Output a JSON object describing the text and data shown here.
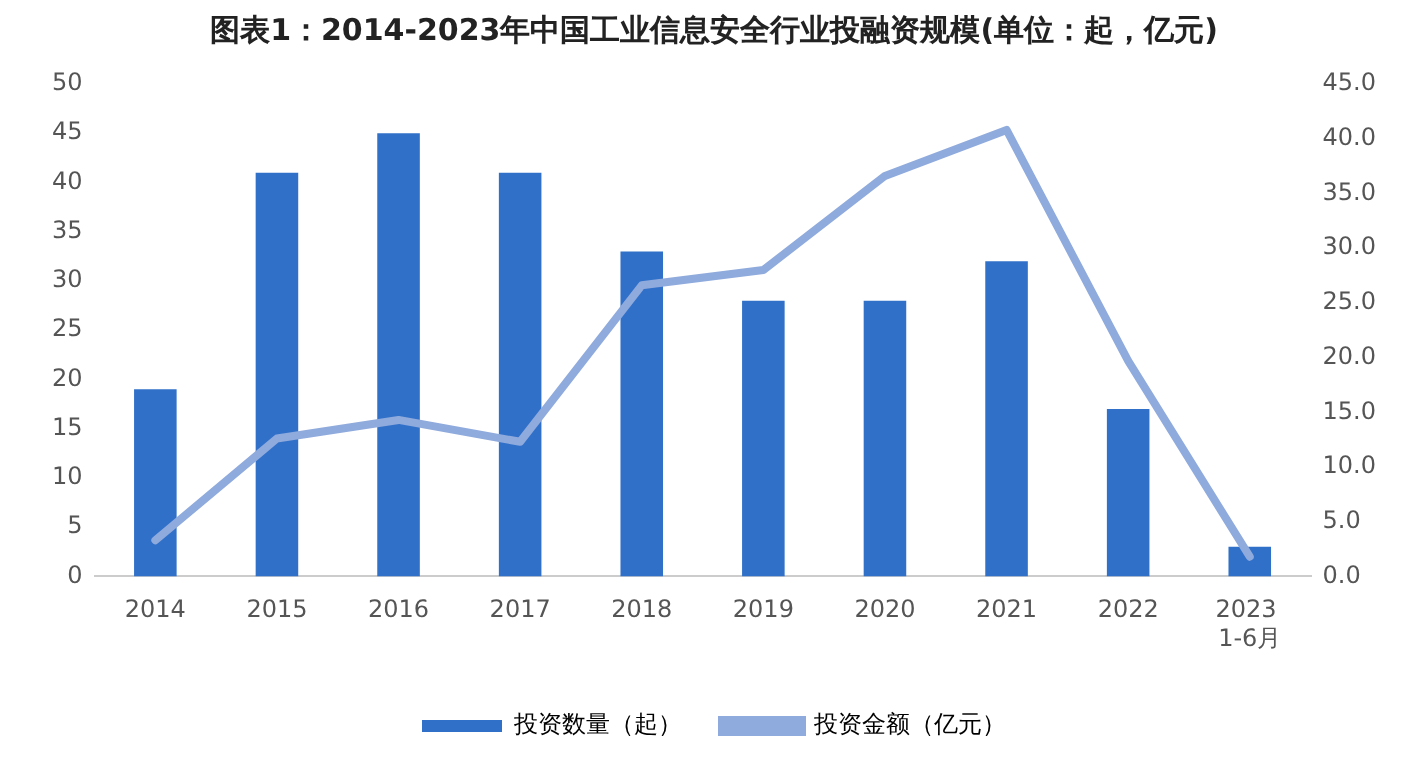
{
  "chart_data": {
    "type": "bar",
    "title": "图表1：2014-2023年中国工业信息安全行业投融资规模(单位：起，亿元)",
    "categories": [
      "2014",
      "2015",
      "2016",
      "2017",
      "2018",
      "2019",
      "2020",
      "2021",
      "2022",
      "2023 1-6月"
    ],
    "series": [
      {
        "name": "投资数量（起）",
        "color": "#3070c8",
        "values": [
          19,
          41,
          45,
          41,
          33,
          28,
          28,
          32,
          17,
          3
        ]
      },
      {
        "name": "投资金额（亿元）",
        "type": "line",
        "axis": "y2",
        "color": "#8faadc",
        "values": [
          3.3,
          12.6,
          14.3,
          12.3,
          26.6,
          28,
          36.6,
          40.8,
          19.7,
          1.8
        ]
      }
    ],
    "ylim": [
      0,
      50
    ],
    "yticks": [
      0,
      5,
      10,
      15,
      20,
      25,
      30,
      35,
      40,
      45,
      50
    ],
    "y2lim": [
      0,
      45
    ],
    "y2ticks": [
      {
        "value": 0,
        "label": "0.0"
      },
      {
        "value": 5,
        "label": "5.0"
      },
      {
        "value": 10,
        "label": "10.0"
      },
      {
        "value": 15,
        "label": "15.0"
      },
      {
        "value": 20,
        "label": "20.0"
      },
      {
        "value": 25,
        "label": "25.0"
      },
      {
        "value": 30,
        "label": "30.0"
      },
      {
        "value": 35,
        "label": "35.0"
      },
      {
        "value": 40,
        "label": "40.0"
      },
      {
        "value": 45,
        "label": "45.0"
      }
    ],
    "grid": false,
    "legend": "bottom",
    "marker": "none",
    "line_style": "solid"
  }
}
